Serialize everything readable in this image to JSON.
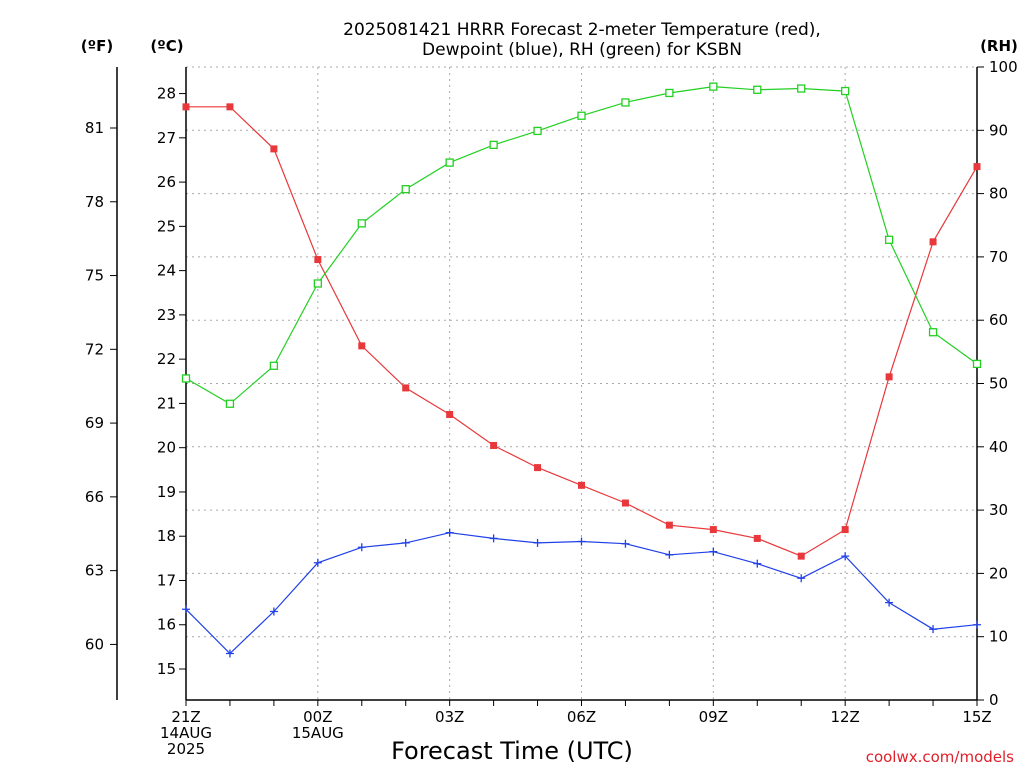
{
  "chart_data": {
    "type": "line",
    "title": "2025081421 HRRR Forecast 2-meter Temperature (red),",
    "subtitle": "Dewpoint (blue), RH (green) for KSBN",
    "xlabel": "Forecast Time (UTC)",
    "credit": "coolwx.com/models",
    "units": {
      "fahrenheit": "(ºF)",
      "celsius": "(ºC)",
      "rh": "(RH)"
    },
    "grid": true,
    "legend": "none",
    "x": [
      "21Z",
      "22Z",
      "23Z",
      "00Z",
      "01Z",
      "02Z",
      "03Z",
      "04Z",
      "05Z",
      "06Z",
      "07Z",
      "08Z",
      "09Z",
      "10Z",
      "11Z",
      "12Z",
      "13Z",
      "14Z",
      "15Z"
    ],
    "x_tick_labels": [
      {
        "index": 0,
        "lines": [
          "21Z",
          "14AUG",
          "2025"
        ]
      },
      {
        "index": 3,
        "lines": [
          "00Z",
          "15AUG"
        ]
      },
      {
        "index": 6,
        "lines": [
          "03Z"
        ]
      },
      {
        "index": 9,
        "lines": [
          "06Z"
        ]
      },
      {
        "index": 12,
        "lines": [
          "09Z"
        ]
      },
      {
        "index": 15,
        "lines": [
          "12Z"
        ]
      },
      {
        "index": 18,
        "lines": [
          "15Z"
        ]
      }
    ],
    "celsius_axis": {
      "ylim": [
        14.3,
        28.6
      ],
      "ticks": [
        15,
        16,
        17,
        18,
        19,
        20,
        21,
        22,
        23,
        24,
        25,
        26,
        27,
        28
      ]
    },
    "fahrenheit_axis": {
      "ylim": [
        57.74,
        83.48
      ],
      "ticks": [
        60,
        63,
        66,
        69,
        72,
        75,
        78,
        81
      ]
    },
    "rh_axis": {
      "ylim": [
        0,
        100
      ],
      "ticks": [
        0,
        10,
        20,
        30,
        40,
        50,
        60,
        70,
        80,
        90,
        100
      ]
    },
    "series": [
      {
        "name": "2-meter Temperature",
        "axis": "celsius",
        "color": "#e8383b",
        "marker": "filled-square",
        "values": [
          27.7,
          27.7,
          26.75,
          24.25,
          22.3,
          21.35,
          20.75,
          20.05,
          19.55,
          19.15,
          18.75,
          18.25,
          18.15,
          17.95,
          17.55,
          18.15,
          21.6,
          24.65,
          26.35
        ]
      },
      {
        "name": "Dewpoint",
        "axis": "celsius",
        "color": "#2040e8",
        "marker": "plus",
        "values": [
          16.35,
          15.35,
          16.3,
          17.4,
          17.75,
          17.85,
          18.08,
          17.95,
          17.85,
          17.88,
          17.83,
          17.58,
          17.65,
          17.38,
          17.05,
          17.55,
          16.5,
          15.9,
          16.0
        ]
      },
      {
        "name": "RH",
        "axis": "rh",
        "color": "#22d022",
        "marker": "open-square",
        "values": [
          50.8,
          46.8,
          52.8,
          65.8,
          75.3,
          80.7,
          84.9,
          87.7,
          89.9,
          92.3,
          94.4,
          95.9,
          96.9,
          96.4,
          96.6,
          96.2,
          72.7,
          58.1,
          53.1
        ]
      }
    ]
  }
}
